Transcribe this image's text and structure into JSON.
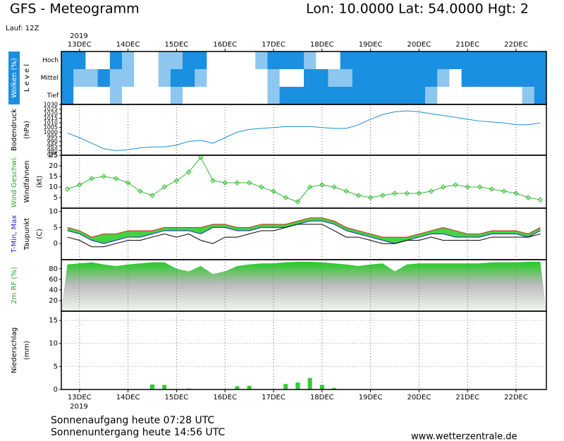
{
  "header": {
    "title": "GFS - Meteogramm",
    "location": "Lon: 10.0000 Lat: 54.0000 Hgt: 2",
    "run": "Lauf: 12Z",
    "year": "2019"
  },
  "footer": {
    "sunrise": "Sonnenaufgang heute 07:28 UTC",
    "sunset": "Sonnenuntergang heute 14:56 UTC",
    "source": "www.wetterzentrale.de"
  },
  "chart_data": [
    {
      "type": "heatmap",
      "ylabel": [
        "Wolken (%)",
        "L e v e l"
      ],
      "clear_color": "#1b8fe0",
      "cloud_color": "#ffffff",
      "categories": [
        null,
        "13DEC",
        null,
        null,
        null,
        "14DEC",
        null,
        null,
        null,
        "15DEC",
        null,
        null,
        null,
        "16DEC",
        null,
        null,
        null,
        "17DEC",
        null,
        null,
        null,
        "18DEC",
        null,
        null,
        null,
        "19DEC",
        null,
        null,
        null,
        "20DEC",
        null,
        null,
        null,
        "21DEC",
        null,
        null,
        null,
        "22DEC",
        null,
        null
      ],
      "series": [
        {
          "name": "Hoch",
          "values": [
            0,
            0,
            100,
            100,
            0,
            50,
            100,
            100,
            50,
            50,
            0,
            0,
            100,
            100,
            100,
            100,
            50,
            0,
            0,
            0,
            50,
            100,
            100,
            0,
            0,
            0,
            0,
            0,
            0,
            0,
            0,
            0,
            0,
            0,
            0,
            0,
            0,
            0,
            0,
            0
          ]
        },
        {
          "name": "Mittel",
          "values": [
            0,
            50,
            50,
            0,
            50,
            50,
            100,
            100,
            50,
            0,
            0,
            50,
            100,
            100,
            100,
            100,
            100,
            50,
            100,
            100,
            0,
            0,
            50,
            50,
            0,
            0,
            0,
            0,
            0,
            0,
            0,
            50,
            100,
            0,
            0,
            0,
            0,
            0,
            0,
            0
          ]
        },
        {
          "name": "Tief",
          "values": [
            0,
            100,
            100,
            100,
            50,
            100,
            100,
            100,
            100,
            50,
            100,
            100,
            100,
            100,
            100,
            100,
            100,
            50,
            0,
            0,
            0,
            0,
            0,
            0,
            0,
            0,
            0,
            0,
            0,
            0,
            50,
            100,
            100,
            100,
            100,
            100,
            100,
            100,
            50,
            0
          ]
        }
      ]
    },
    {
      "type": "line",
      "ylabel": [
        "Bodendruck",
        "(hPa)"
      ],
      "ylim": [
        975,
        1030
      ],
      "yticks": [
        975,
        980,
        985,
        990,
        995,
        1000,
        1005,
        1010,
        1015,
        1020,
        1025,
        1030
      ],
      "categories": [
        null,
        "13DEC",
        null,
        null,
        null,
        "14DEC",
        null,
        null,
        null,
        "15DEC",
        null,
        null,
        null,
        "16DEC",
        null,
        null,
        null,
        "17DEC",
        null,
        null,
        null,
        "18DEC",
        null,
        null,
        null,
        "19DEC",
        null,
        null,
        null,
        "20DEC",
        null,
        null,
        null,
        "21DEC",
        null,
        null,
        null,
        "22DEC",
        null,
        null
      ],
      "series": [
        {
          "color": "#1a8fd0",
          "values": [
            999,
            994,
            988,
            982,
            980,
            981,
            983,
            984,
            984,
            986,
            990,
            991,
            988,
            994,
            1000,
            1003,
            1004,
            1005,
            1006,
            1006,
            1006,
            1005,
            1004,
            1004,
            1008,
            1014,
            1019,
            1022,
            1023,
            1022,
            1020,
            1018,
            1016,
            1014,
            1012,
            1011,
            1010,
            1008,
            1008,
            1010
          ]
        }
      ]
    },
    {
      "type": "line",
      "ylabel": [
        "Wind Geschwi.",
        "Windfahnen",
        "(kt)"
      ],
      "ylabel_colors": [
        "#22aa22",
        "#000000",
        "#000000"
      ],
      "ylim": [
        0,
        25
      ],
      "yticks": [
        5,
        10,
        15,
        20,
        25
      ],
      "markers": true,
      "categories": [
        null,
        "13DEC",
        null,
        null,
        null,
        "14DEC",
        null,
        null,
        null,
        "15DEC",
        null,
        null,
        null,
        "16DEC",
        null,
        null,
        null,
        "17DEC",
        null,
        null,
        null,
        "18DEC",
        null,
        null,
        null,
        "19DEC",
        null,
        null,
        null,
        "20DEC",
        null,
        null,
        null,
        "21DEC",
        null,
        null,
        null,
        "22DEC",
        null,
        null
      ],
      "series": [
        {
          "color": "#33bb33",
          "values": [
            9,
            11,
            14,
            15,
            14,
            12,
            8,
            6,
            10,
            13,
            17,
            24,
            13,
            12,
            12,
            12,
            10,
            8,
            5,
            3,
            10,
            11,
            10,
            8,
            6,
            5,
            6,
            7,
            7,
            7,
            8,
            10,
            11,
            10,
            10,
            9,
            8,
            7,
            5,
            4
          ]
        }
      ]
    },
    {
      "type": "line",
      "ylabel": [
        "T-Min, Max",
        "Taupunkt",
        "(C)"
      ],
      "ylabel_colors": [
        "#2222cc",
        "#000000",
        "#000000"
      ],
      "ylim": [
        -5,
        11
      ],
      "yticks": [
        0,
        5,
        10
      ],
      "band_color": "#22cc22",
      "categories": [
        null,
        "13DEC",
        null,
        null,
        null,
        "14DEC",
        null,
        null,
        null,
        "15DEC",
        null,
        null,
        null,
        "16DEC",
        null,
        null,
        null,
        "17DEC",
        null,
        null,
        null,
        "18DEC",
        null,
        null,
        null,
        "19DEC",
        null,
        null,
        null,
        "20DEC",
        null,
        null,
        null,
        "21DEC",
        null,
        null,
        null,
        "22DEC",
        null,
        null
      ],
      "series": [
        {
          "color": "#dd2222",
          "values": [
            5,
            4,
            2,
            3,
            3,
            4,
            4,
            4,
            5,
            5,
            5,
            5,
            6,
            6,
            5,
            5,
            6,
            6,
            6,
            7,
            8,
            8,
            7,
            5,
            4,
            3,
            2,
            2,
            2,
            3,
            4,
            5,
            4,
            3,
            3,
            4,
            4,
            4,
            3,
            5
          ]
        },
        {
          "color": "#2222dd",
          "values": [
            4,
            3,
            1,
            0,
            1,
            2,
            2,
            3,
            4,
            4,
            4,
            3,
            5,
            5,
            4,
            4,
            5,
            5,
            5,
            6,
            7,
            7,
            6,
            4,
            3,
            2,
            1,
            0,
            1,
            2,
            3,
            3,
            2,
            2,
            2,
            3,
            3,
            3,
            2,
            4
          ]
        },
        {
          "color": "#000000",
          "values": [
            2,
            1,
            -1,
            -1,
            0,
            1,
            1,
            2,
            3,
            2,
            3,
            1,
            0,
            2,
            2,
            3,
            4,
            4,
            5,
            6,
            6,
            6,
            4,
            2,
            2,
            1,
            0,
            0,
            1,
            1,
            2,
            1,
            1,
            1,
            1,
            2,
            2,
            2,
            2,
            3
          ]
        }
      ]
    },
    {
      "type": "area",
      "ylabel": [
        "2m RF (%)"
      ],
      "ylabel_colors": [
        "#22aa22"
      ],
      "ylim": [
        0,
        97
      ],
      "yticks": [
        20,
        40,
        60,
        80
      ],
      "color": "#22cc22",
      "categories": [
        null,
        "13DEC",
        null,
        null,
        null,
        "14DEC",
        null,
        null,
        null,
        "15DEC",
        null,
        null,
        null,
        "16DEC",
        null,
        null,
        null,
        "17DEC",
        null,
        null,
        null,
        "18DEC",
        null,
        null,
        null,
        "19DEC",
        null,
        null,
        null,
        "20DEC",
        null,
        null,
        null,
        "21DEC",
        null,
        null,
        null,
        "22DEC",
        null,
        null
      ],
      "values": [
        88,
        90,
        92,
        88,
        85,
        88,
        90,
        92,
        92,
        80,
        75,
        85,
        70,
        75,
        85,
        88,
        90,
        90,
        92,
        93,
        93,
        92,
        90,
        88,
        85,
        88,
        90,
        75,
        88,
        90,
        90,
        90,
        90,
        90,
        90,
        92,
        92,
        92,
        93,
        93
      ]
    },
    {
      "type": "bar",
      "ylabel": [
        "Niederschlag",
        "(mm)"
      ],
      "ylim": [
        0,
        17
      ],
      "yticks": [
        0,
        5,
        10,
        15
      ],
      "grid": true,
      "color": "#33cc33",
      "categories": [
        null,
        "13DEC",
        null,
        null,
        null,
        "14DEC",
        null,
        null,
        null,
        "15DEC",
        null,
        null,
        null,
        "16DEC",
        null,
        null,
        null,
        "17DEC",
        null,
        null,
        null,
        "18DEC",
        null,
        null,
        null,
        "19DEC",
        null,
        null,
        null,
        "20DEC",
        null,
        null,
        null,
        "21DEC",
        null,
        null,
        null,
        "22DEC",
        null,
        null
      ],
      "values": [
        0,
        0,
        0,
        0,
        0,
        0,
        0,
        1.1,
        1.0,
        0,
        0.2,
        0,
        0,
        0,
        0.7,
        0.8,
        0,
        0,
        1.2,
        1.5,
        2.5,
        1.0,
        0.3,
        0,
        0,
        0,
        0,
        0,
        0,
        0,
        0,
        0,
        0,
        0,
        0,
        0,
        0,
        0,
        0,
        0
      ]
    }
  ]
}
